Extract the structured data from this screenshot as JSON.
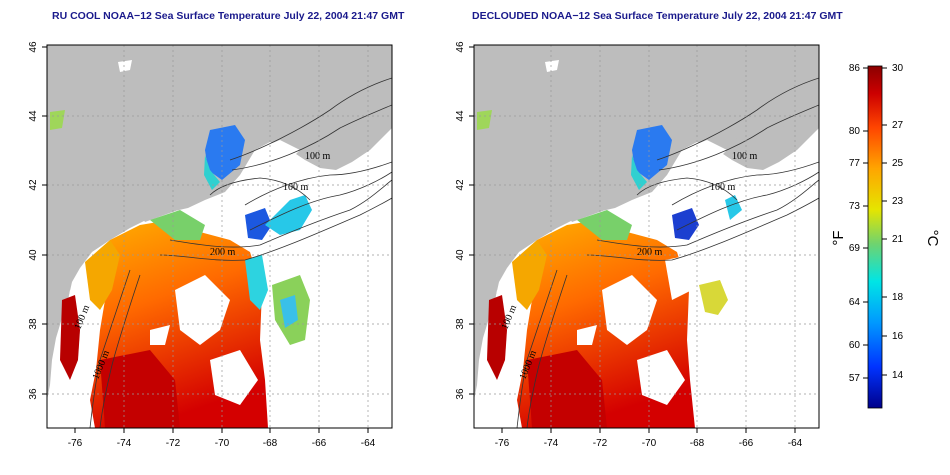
{
  "maps": [
    {
      "id": "left",
      "title": "RU COOL NOAA−12 Sea Surface Temperature July 22, 2004 21:47 GMT",
      "contours": [
        "100 m",
        "100 m",
        "200 m",
        "100 m",
        "1000 m"
      ]
    },
    {
      "id": "right",
      "title": "DECLOUDED NOAA−12 Sea Surface Temperature July 22, 2004 21:47 GMT",
      "contours": [
        "100 m",
        "100 m",
        "200 m",
        "100 m",
        "1000 m"
      ]
    }
  ],
  "axes": {
    "lon_ticks": [
      "-76",
      "-74",
      "-72",
      "-70",
      "-68",
      "-66",
      "-64"
    ],
    "lat_ticks": [
      "46",
      "44",
      "42",
      "40",
      "38",
      "36"
    ]
  },
  "colorbar": {
    "f_label": "°F",
    "c_label": "°C",
    "f_ticks": [
      "86",
      "80",
      "77",
      "73",
      "69",
      "64",
      "60",
      "57"
    ],
    "c_ticks": [
      "30",
      "27",
      "25",
      "23",
      "21",
      "18",
      "16",
      "14"
    ],
    "range_c": [
      12,
      30
    ],
    "colors": [
      "#00008b",
      "#0033ff",
      "#0099ff",
      "#00e5e5",
      "#6fd36f",
      "#e5e500",
      "#ffa500",
      "#ff4500",
      "#cc0000",
      "#8b0000"
    ]
  },
  "colors": {
    "land": "#bdbdbd",
    "water": "#ffffff"
  }
}
